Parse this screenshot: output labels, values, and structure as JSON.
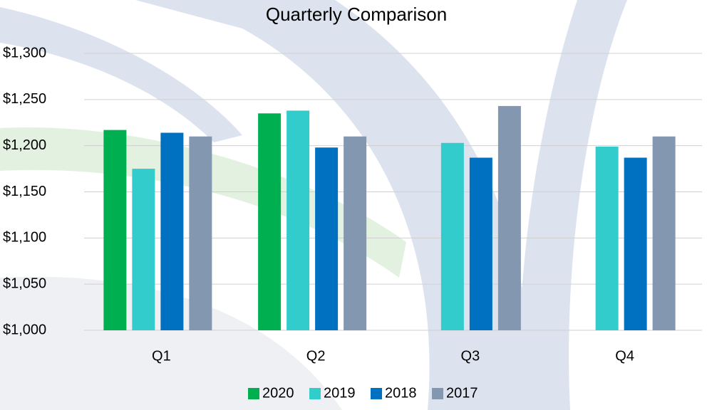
{
  "chart_data": {
    "type": "bar",
    "title": "Quarterly Comparison",
    "categories": [
      "Q1",
      "Q2",
      "Q3",
      "Q4"
    ],
    "series": [
      {
        "name": "2020",
        "color": "#00b050",
        "values": [
          1217,
          1235,
          null,
          null
        ]
      },
      {
        "name": "2019",
        "color": "#33cccc",
        "values": [
          1175,
          1238,
          1203,
          1199
        ]
      },
      {
        "name": "2018",
        "color": "#0070c0",
        "values": [
          1214,
          1198,
          1187,
          1187
        ]
      },
      {
        "name": "2017",
        "color": "#8497b0",
        "values": [
          1210,
          1210,
          1243,
          1210
        ]
      }
    ],
    "ylim": [
      1000,
      1300
    ],
    "yticks": [
      {
        "value": 1000,
        "label": "$1,000"
      },
      {
        "value": 1050,
        "label": "$1,050"
      },
      {
        "value": 1100,
        "label": "$1,100"
      },
      {
        "value": 1150,
        "label": "$1,150"
      },
      {
        "value": 1200,
        "label": "$1,200"
      },
      {
        "value": 1250,
        "label": "$1,250"
      },
      {
        "value": 1300,
        "label": "$1,300"
      }
    ],
    "grid": true,
    "legend": "bottom"
  }
}
